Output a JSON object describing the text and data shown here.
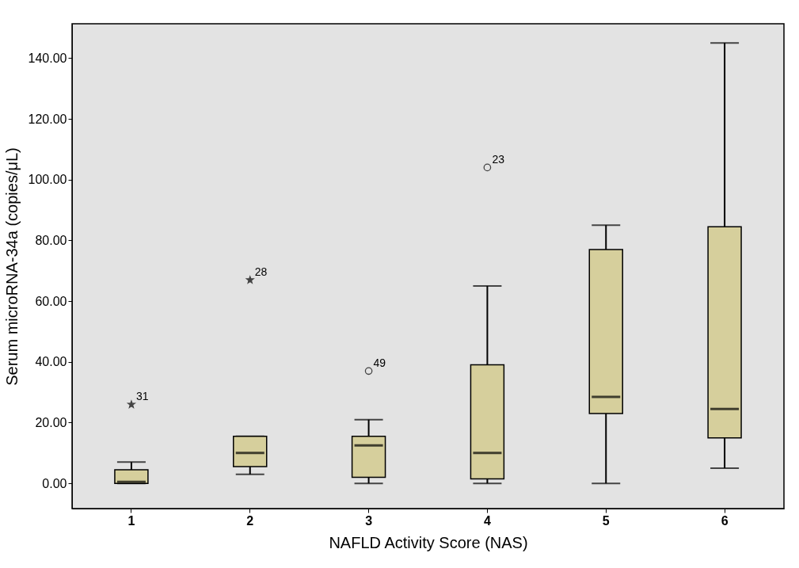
{
  "chart_data": {
    "type": "box",
    "xlabel": "NAFLD Activity Score (NAS)",
    "ylabel": "Serum microRNA-34a (copies/μL)",
    "categories": [
      "1",
      "2",
      "3",
      "4",
      "5",
      "6"
    ],
    "series": [
      {
        "color": "#d6cf9c",
        "boxes": [
          {
            "low": 0,
            "q1": 0,
            "median": 0.5,
            "q3": 4.5,
            "high": 7,
            "outliers": [
              26
            ]
          },
          {
            "low": 3,
            "q1": 5.5,
            "median": 10,
            "q3": 15.5,
            "high": 15.5,
            "outliers": [
              67
            ]
          },
          {
            "low": 0,
            "q1": 2,
            "median": 12.5,
            "q3": 15.5,
            "high": 21,
            "outliers": [
              37
            ]
          },
          {
            "low": 0,
            "q1": 1.5,
            "median": 10,
            "q3": 39,
            "high": 65,
            "outliers": [
              104
            ]
          },
          {
            "low": 0,
            "q1": 23,
            "median": 28.5,
            "q3": 77,
            "high": 85
          },
          {
            "low": 5,
            "q1": 15,
            "median": 24.5,
            "q3": 84.5,
            "high": 145
          }
        ]
      }
    ],
    "ylim": [
      -8.3,
      151.3
    ],
    "yticks": [
      {
        "value": 0,
        "label": "0.00"
      },
      {
        "value": 20,
        "label": "20.00"
      },
      {
        "value": 40,
        "label": "40.00"
      },
      {
        "value": 60,
        "label": "60.00"
      },
      {
        "value": 80,
        "label": "80.00"
      },
      {
        "value": 100,
        "label": "100.00"
      },
      {
        "value": 120,
        "label": "120.00"
      },
      {
        "value": 140,
        "label": "140.00"
      }
    ],
    "annotations": [
      "31",
      "28",
      "49",
      "23"
    ],
    "grid": false
  }
}
